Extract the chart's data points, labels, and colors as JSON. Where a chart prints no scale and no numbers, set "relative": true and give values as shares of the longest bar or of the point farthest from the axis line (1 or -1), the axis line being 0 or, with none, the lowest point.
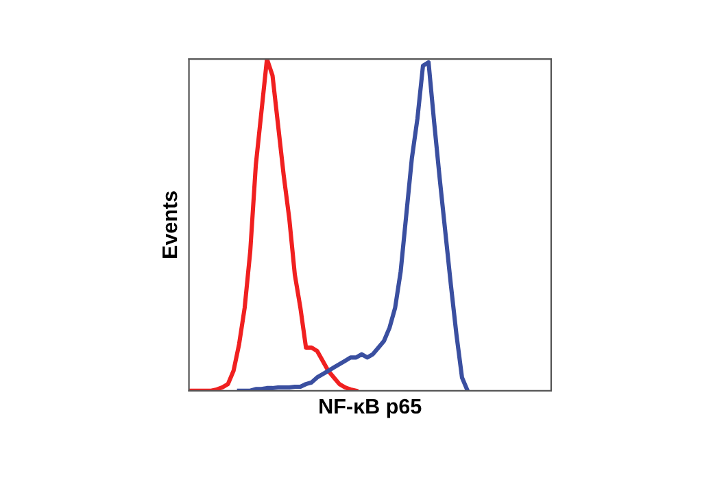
{
  "chart_data": {
    "type": "line",
    "relative": true,
    "xlabel": "NF-κB p65",
    "ylabel": "Events",
    "tick_labels": false,
    "grid": false,
    "legend": false,
    "marker": "none",
    "line_style": "solid",
    "categories": [
      null,
      null,
      null,
      null,
      null,
      null,
      null,
      null,
      null,
      null,
      null,
      null,
      null,
      null,
      null,
      null,
      null,
      null,
      null,
      null,
      null,
      null,
      null,
      null,
      null,
      null,
      null,
      null,
      null,
      null,
      null,
      null,
      null,
      null,
      null,
      null,
      null,
      null,
      null,
      null,
      null,
      null,
      null,
      null,
      null,
      null,
      null,
      null,
      null,
      null,
      null,
      null,
      null,
      null,
      null,
      null,
      null,
      null,
      null,
      null,
      null,
      null,
      null,
      null,
      null,
      null
    ],
    "series": [
      {
        "color": "#f02020",
        "values": [
          0,
          0,
          0,
          0,
          0,
          0.004,
          0.01,
          0.02,
          0.06,
          0.14,
          0.25,
          0.42,
          0.68,
          0.84,
          1.0,
          0.95,
          0.8,
          0.65,
          0.52,
          0.35,
          0.25,
          0.13,
          0.13,
          0.12,
          0.09,
          0.06,
          0.04,
          0.02,
          0.01,
          0.004,
          0,
          null,
          null,
          null,
          null,
          null,
          null,
          null,
          null,
          null,
          null,
          null,
          null,
          null,
          null,
          null,
          null,
          null,
          null,
          null,
          null,
          null,
          null,
          null,
          null,
          null,
          null,
          null,
          null,
          null,
          null,
          null,
          null,
          null,
          null,
          null
        ]
      },
      {
        "color": "#3a4fa0",
        "values": [
          null,
          null,
          null,
          null,
          null,
          null,
          null,
          null,
          null,
          0,
          0,
          0,
          0.005,
          0.005,
          0.008,
          0.008,
          0.01,
          0.01,
          0.01,
          0.012,
          0.012,
          0.02,
          0.025,
          0.04,
          0.05,
          0.06,
          0.07,
          0.08,
          0.09,
          0.1,
          0.1,
          0.11,
          0.1,
          0.11,
          0.13,
          0.15,
          0.19,
          0.25,
          0.36,
          0.53,
          0.7,
          0.82,
          0.98,
          0.99,
          0.81,
          0.64,
          0.48,
          0.32,
          0.17,
          0.04,
          0,
          null,
          null,
          null,
          null,
          null,
          null,
          null,
          null,
          null,
          null,
          null,
          null,
          null,
          null,
          null
        ]
      }
    ]
  }
}
